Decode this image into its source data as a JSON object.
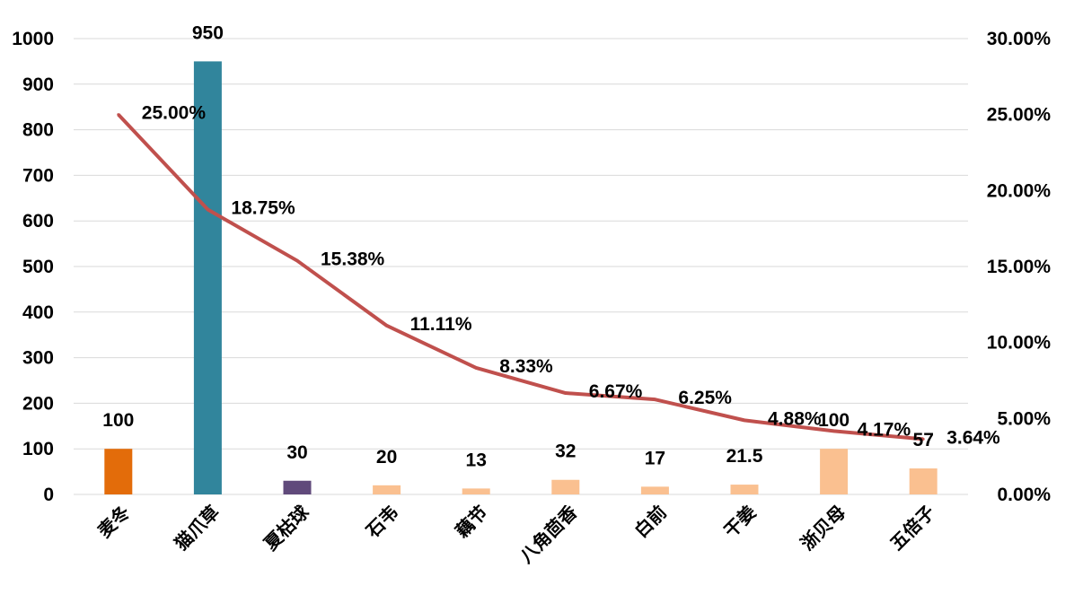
{
  "chart_data": {
    "type": "bar",
    "categories": [
      "麦冬",
      "猫爪草",
      "夏枯球",
      "石韦",
      "藕节",
      "八角茴香",
      "白前",
      "干姜",
      "浙贝母",
      "五倍子"
    ],
    "series": [
      {
        "type": "bar",
        "axis": "left",
        "values": [
          100,
          950,
          30,
          20,
          13,
          32,
          17,
          21.5,
          100,
          57
        ],
        "value_labels": [
          "100",
          "950",
          "30",
          "20",
          "13",
          "32",
          "17",
          "21.5",
          "100",
          "57"
        ],
        "colors": [
          "#e36c0a",
          "#31859c",
          "#604a7b",
          "#fac090",
          "#fac090",
          "#fac090",
          "#fac090",
          "#fac090",
          "#fac090",
          "#fac090"
        ]
      },
      {
        "type": "line",
        "axis": "right",
        "values": [
          25.0,
          18.75,
          15.38,
          11.11,
          8.33,
          6.67,
          6.25,
          4.88,
          4.17,
          3.64
        ],
        "value_labels": [
          "25.00%",
          "18.75%",
          "15.38%",
          "11.11%",
          "8.33%",
          "6.67%",
          "6.25%",
          "4.88%",
          "4.17%",
          "3.64%"
        ],
        "color": "#c0504d"
      }
    ],
    "y_left": {
      "lim": [
        0,
        1000
      ],
      "ticks": [
        "0",
        "100",
        "200",
        "300",
        "400",
        "500",
        "600",
        "700",
        "800",
        "900",
        "1000"
      ]
    },
    "y_right": {
      "lim": [
        0,
        30
      ],
      "ticks": [
        "0.00%",
        "5.00%",
        "10.00%",
        "15.00%",
        "20.00%",
        "25.00%",
        "30.00%"
      ]
    },
    "grid": true,
    "legend": "none",
    "title": "",
    "xlabel": "",
    "ylabel": ""
  }
}
